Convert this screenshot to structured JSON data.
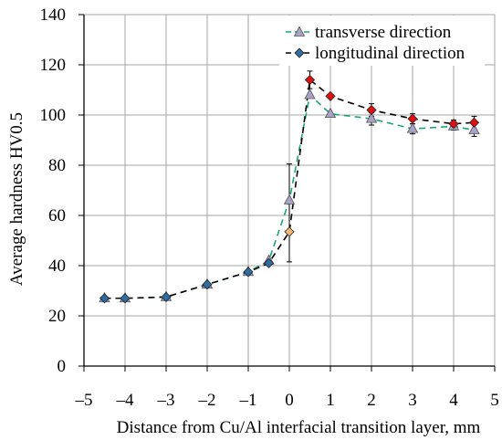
{
  "chart_data": {
    "type": "line",
    "title": "",
    "xlabel": "Distance from Cu/Al interfacial transition layer, mm",
    "ylabel": "Average hardness HV0.5",
    "xlim": [
      -5,
      5
    ],
    "ylim": [
      0,
      140
    ],
    "x_ticks": [
      -5,
      -4,
      -3,
      -2,
      -1,
      0,
      1,
      2,
      3,
      4,
      5
    ],
    "x_tick_labels": [
      "–5",
      "–4",
      "–3",
      "–2",
      "–1",
      "0",
      "1",
      "2",
      "3",
      "4",
      "5"
    ],
    "y_ticks": [
      0,
      20,
      40,
      60,
      80,
      100,
      120,
      140
    ],
    "y_tick_labels": [
      "0",
      "20",
      "40",
      "60",
      "80",
      "100",
      "120",
      "140"
    ],
    "grid": true,
    "legend_position": "top-right",
    "series": [
      {
        "name": "transverse direction",
        "marker": "triangle",
        "line_color": "#1aa67a",
        "marker_color": "#a9a3c8",
        "x": [
          -4.5,
          -4,
          -3,
          -2,
          -1,
          -0.5,
          0,
          0.5,
          1,
          2,
          3,
          4,
          4.5
        ],
        "y": [
          27,
          27,
          27.5,
          32.5,
          37.5,
          42,
          66,
          108,
          100.5,
          98.5,
          94.5,
          95.5,
          94
        ],
        "err": [
          0,
          0,
          0,
          0,
          0,
          0,
          0,
          0,
          0,
          2.5,
          2,
          1.5,
          2.5
        ]
      },
      {
        "name": "longitudinal direction",
        "marker": "diamond",
        "line_color": "#000000",
        "marker_color": "#2e6da4",
        "x": [
          -4.5,
          -4,
          -3,
          -2,
          -1,
          -0.5,
          0,
          0.5,
          1,
          2,
          3,
          4,
          4.5
        ],
        "y": [
          27,
          27,
          27.5,
          32.5,
          37.5,
          41,
          53.5,
          114,
          107.5,
          102,
          98.5,
          96.5,
          97
        ],
        "err": [
          0,
          0,
          0,
          0,
          0,
          0,
          12,
          3.5,
          0,
          2.5,
          2,
          1.5,
          2.5
        ],
        "err_upper": [
          0,
          0,
          0,
          0,
          0,
          0,
          27,
          3.5,
          0,
          2.5,
          2,
          1.5,
          2.5
        ],
        "highlight_color": "#e01010",
        "highlight_x": [
          0.5,
          1,
          2,
          3,
          4,
          4.5
        ],
        "orange_x": [
          0
        ]
      }
    ]
  }
}
